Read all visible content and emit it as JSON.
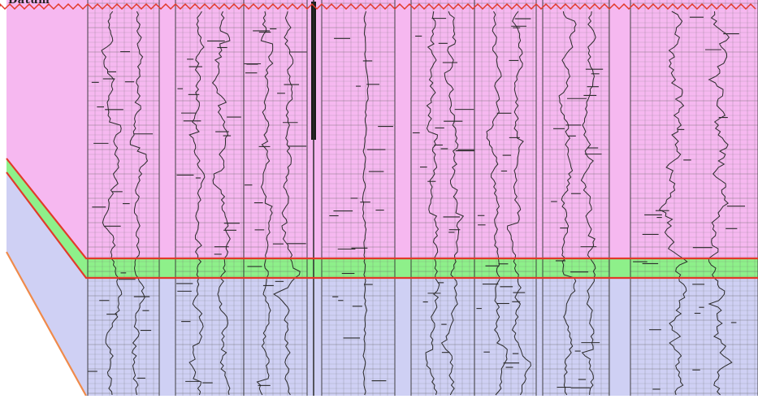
{
  "header": {
    "datum_label": "Datum"
  },
  "colors": {
    "upper_zone": "#f6b8f0",
    "marker_bed": "#8ef08a",
    "lower_zone": "#cfd0f4",
    "top_line": "#e23a2a",
    "lower_line": "#f08a4a",
    "log_ink": "#2a2a2a",
    "grid": "#6b6b6b"
  },
  "panel": {
    "icon": "well-log-correlation-panel",
    "log_tracks": 8
  }
}
